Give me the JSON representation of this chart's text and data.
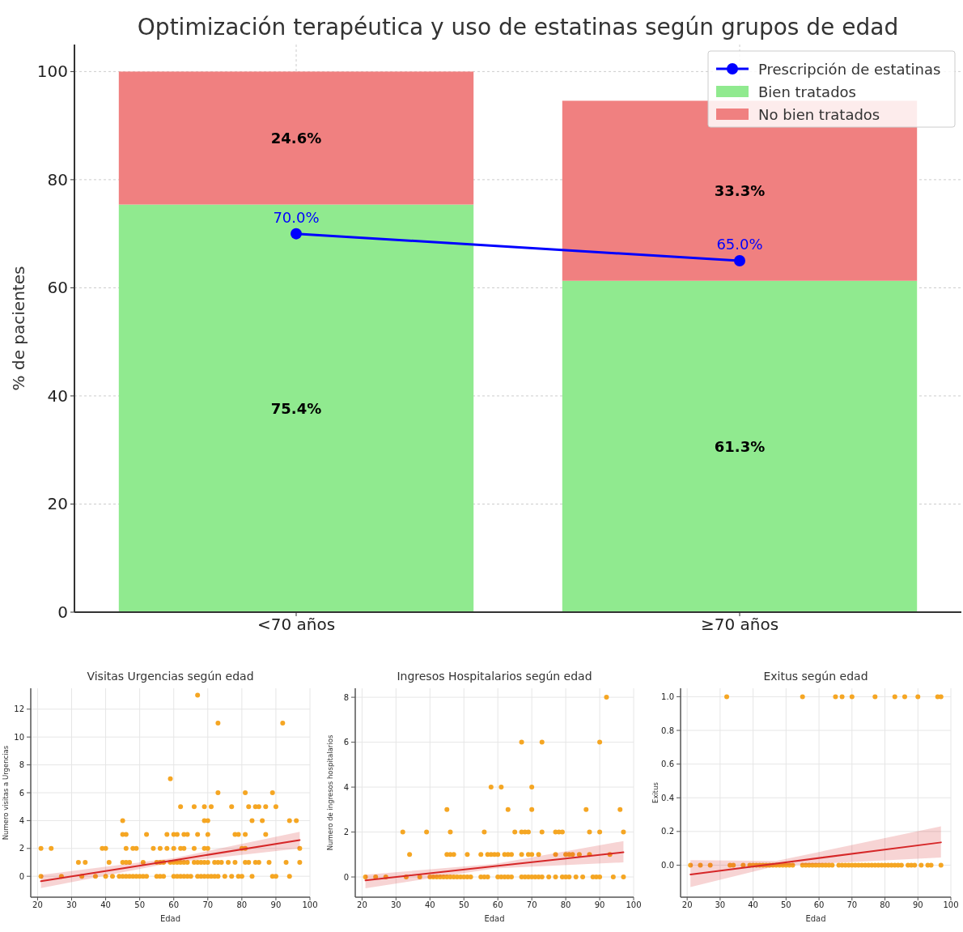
{
  "chart_data": [
    {
      "type": "bar",
      "stacked": true,
      "title": "Optimización terapéutica y uso de estatinas según grupos de edad",
      "ylabel": "% de pacientes",
      "categories": [
        "<70 años",
        "≥70 años"
      ],
      "ylim": [
        0,
        105
      ],
      "yticks": [
        0,
        20,
        40,
        60,
        80,
        100
      ],
      "grid": true,
      "legend": "top right",
      "series": [
        {
          "name": "Bien tratados",
          "color": "#90ea8f",
          "values": [
            75.4,
            61.3
          ],
          "value_labels": [
            "75.4%",
            "61.3%"
          ]
        },
        {
          "name": "No bien tratados",
          "color": "#f08080",
          "values": [
            24.6,
            33.3
          ],
          "value_labels": [
            "24.6%",
            "33.3%"
          ]
        },
        {
          "name": "Prescripción de estatinas",
          "type": "line",
          "marker": "circle",
          "color": "#0000ff",
          "values": [
            70,
            65
          ],
          "value_labels": [
            "70.0%",
            "65.0%"
          ]
        }
      ]
    },
    {
      "type": "scatter",
      "title": "Visitas Urgencias según edad",
      "xlabel": "Edad",
      "ylabel": "Numero visitas a Urgencias",
      "xlim": [
        18,
        100
      ],
      "xticks": [
        20,
        30,
        40,
        50,
        60,
        70,
        80,
        90,
        100
      ],
      "ylim": [
        -1.5,
        13.5
      ],
      "yticks": [
        0,
        2,
        4,
        6,
        8,
        10,
        12
      ],
      "grid": true,
      "series": [
        {
          "color": "#f5a623",
          "marker": "circle",
          "x": [
            67,
            73,
            92,
            59,
            73,
            81,
            89,
            62,
            66,
            69,
            71,
            77,
            82,
            84,
            85,
            87,
            90,
            45,
            69,
            70,
            83,
            86,
            94,
            96,
            45,
            46,
            52,
            58,
            60,
            61,
            63,
            64,
            67,
            70,
            78,
            79,
            81,
            87,
            21,
            24,
            39,
            40,
            46,
            48,
            49,
            54,
            56,
            58,
            60,
            62,
            63,
            66,
            69,
            70,
            80,
            81,
            97,
            32,
            34,
            41,
            45,
            46,
            47,
            51,
            55,
            56,
            57,
            59,
            60,
            61,
            62,
            63,
            64,
            66,
            67,
            68,
            69,
            70,
            72,
            73,
            74,
            76,
            78,
            81,
            82,
            84,
            85,
            88,
            93,
            97,
            21,
            27,
            33,
            37,
            40,
            42,
            44,
            45,
            46,
            47,
            48,
            49,
            50,
            51,
            52,
            55,
            56,
            57,
            60,
            61,
            62,
            63,
            64,
            65,
            67,
            68,
            69,
            70,
            71,
            72,
            73,
            75,
            77,
            79,
            80,
            83,
            89,
            90,
            94
          ],
          "values": [
            13,
            11,
            11,
            7,
            6,
            6,
            6,
            5,
            5,
            5,
            5,
            5,
            5,
            5,
            5,
            5,
            5,
            4,
            4,
            4,
            4,
            4,
            4,
            4,
            3,
            3,
            3,
            3,
            3,
            3,
            3,
            3,
            3,
            3,
            3,
            3,
            3,
            3,
            2,
            2,
            2,
            2,
            2,
            2,
            2,
            2,
            2,
            2,
            2,
            2,
            2,
            2,
            2,
            2,
            2,
            2,
            2,
            1,
            1,
            1,
            1,
            1,
            1,
            1,
            1,
            1,
            1,
            1,
            1,
            1,
            1,
            1,
            1,
            1,
            1,
            1,
            1,
            1,
            1,
            1,
            1,
            1,
            1,
            1,
            1,
            1,
            1,
            1,
            1,
            1,
            0,
            0,
            0,
            0,
            0,
            0,
            0,
            0,
            0,
            0,
            0,
            0,
            0,
            0,
            0,
            0,
            0,
            0,
            0,
            0,
            0,
            0,
            0,
            0,
            0,
            0,
            0,
            0,
            0,
            0,
            0,
            0,
            0,
            0,
            0,
            0,
            0,
            0,
            0
          ]
        },
        {
          "type": "line",
          "color": "#d62728",
          "x": [
            21,
            60,
            97
          ],
          "values": [
            -0.35,
            1.15,
            2.6
          ],
          "lower": [
            -0.85,
            1.0,
            2.0
          ],
          "upper": [
            0.1,
            1.3,
            3.2
          ]
        }
      ]
    },
    {
      "type": "scatter",
      "title": "Ingresos Hospitalarios según edad",
      "xlabel": "Edad",
      "ylabel": "Numero de ingresos hospitalarios",
      "xlim": [
        18,
        100
      ],
      "xticks": [
        20,
        30,
        40,
        50,
        60,
        70,
        80,
        90,
        100
      ],
      "ylim": [
        -0.9,
        8.4
      ],
      "yticks": [
        0,
        2,
        4,
        6,
        8
      ],
      "grid": true,
      "series": [
        {
          "color": "#f5a623",
          "marker": "circle",
          "x": [
            92,
            67,
            73,
            90,
            58,
            61,
            70,
            45,
            63,
            70,
            86,
            96,
            32,
            39,
            46,
            56,
            65,
            67,
            68,
            69,
            73,
            77,
            78,
            79,
            87,
            90,
            97,
            34,
            45,
            46,
            47,
            51,
            55,
            57,
            58,
            59,
            60,
            62,
            63,
            64,
            67,
            69,
            70,
            72,
            77,
            80,
            81,
            82,
            84,
            87,
            93,
            21,
            24,
            27,
            33,
            37,
            40,
            41,
            42,
            43,
            44,
            45,
            46,
            47,
            48,
            49,
            50,
            51,
            52,
            55,
            56,
            57,
            60,
            61,
            62,
            63,
            64,
            67,
            68,
            69,
            70,
            71,
            72,
            73,
            75,
            77,
            79,
            80,
            81,
            83,
            85,
            88,
            89,
            90,
            94,
            97
          ],
          "values": [
            8,
            6,
            6,
            6,
            4,
            4,
            4,
            3,
            3,
            3,
            3,
            3,
            2,
            2,
            2,
            2,
            2,
            2,
            2,
            2,
            2,
            2,
            2,
            2,
            2,
            2,
            2,
            1,
            1,
            1,
            1,
            1,
            1,
            1,
            1,
            1,
            1,
            1,
            1,
            1,
            1,
            1,
            1,
            1,
            1,
            1,
            1,
            1,
            1,
            1,
            1,
            0,
            0,
            0,
            0,
            0,
            0,
            0,
            0,
            0,
            0,
            0,
            0,
            0,
            0,
            0,
            0,
            0,
            0,
            0,
            0,
            0,
            0,
            0,
            0,
            0,
            0,
            0,
            0,
            0,
            0,
            0,
            0,
            0,
            0,
            0,
            0,
            0,
            0,
            0,
            0,
            0,
            0,
            0,
            0,
            0
          ]
        },
        {
          "type": "line",
          "color": "#d62728",
          "x": [
            21,
            59,
            97
          ],
          "values": [
            -0.15,
            0.48,
            1.1
          ],
          "lower": [
            -0.5,
            0.38,
            0.65
          ],
          "upper": [
            0.1,
            0.58,
            1.6
          ]
        }
      ]
    },
    {
      "type": "scatter",
      "title": "Exitus según edad",
      "xlabel": "Edad",
      "ylabel": "Exitus",
      "xlim": [
        18,
        100
      ],
      "xticks": [
        20,
        30,
        40,
        50,
        60,
        70,
        80,
        90,
        100
      ],
      "ylim": [
        -0.19,
        1.05
      ],
      "yticks": [
        {
          "value": 0,
          "label": "0.0"
        },
        0.2,
        0.4,
        0.6,
        0.8,
        {
          "value": 1,
          "label": "1.0"
        }
      ],
      "grid": true,
      "series": [
        {
          "color": "#f5a623",
          "marker": "circle",
          "x": [
            32,
            55,
            65,
            67,
            70,
            77,
            83,
            86,
            90,
            96,
            97,
            21,
            24,
            27,
            33,
            34,
            37,
            39,
            40,
            41,
            42,
            43,
            44,
            45,
            46,
            47,
            48,
            49,
            50,
            51,
            52,
            55,
            56,
            57,
            58,
            59,
            60,
            61,
            62,
            63,
            64,
            66,
            67,
            68,
            69,
            70,
            71,
            72,
            73,
            74,
            75,
            76,
            77,
            78,
            79,
            80,
            81,
            82,
            83,
            84,
            85,
            87,
            88,
            89,
            91,
            93,
            94,
            97
          ],
          "values": [
            1,
            1,
            1,
            1,
            1,
            1,
            1,
            1,
            1,
            1,
            1,
            0,
            0,
            0,
            0,
            0,
            0,
            0,
            0,
            0,
            0,
            0,
            0,
            0,
            0,
            0,
            0,
            0,
            0,
            0,
            0,
            0,
            0,
            0,
            0,
            0,
            0,
            0,
            0,
            0,
            0,
            0,
            0,
            0,
            0,
            0,
            0,
            0,
            0,
            0,
            0,
            0,
            0,
            0,
            0,
            0,
            0,
            0,
            0,
            0,
            0,
            0,
            0,
            0,
            0,
            0,
            0,
            0
          ]
        },
        {
          "type": "line",
          "color": "#d62728",
          "x": [
            21,
            47,
            97
          ],
          "values": [
            -0.055,
            0.01,
            0.135
          ],
          "lower": [
            -0.13,
            -0.005,
            0.045
          ],
          "upper": [
            0.03,
            0.025,
            0.23
          ]
        }
      ]
    }
  ]
}
